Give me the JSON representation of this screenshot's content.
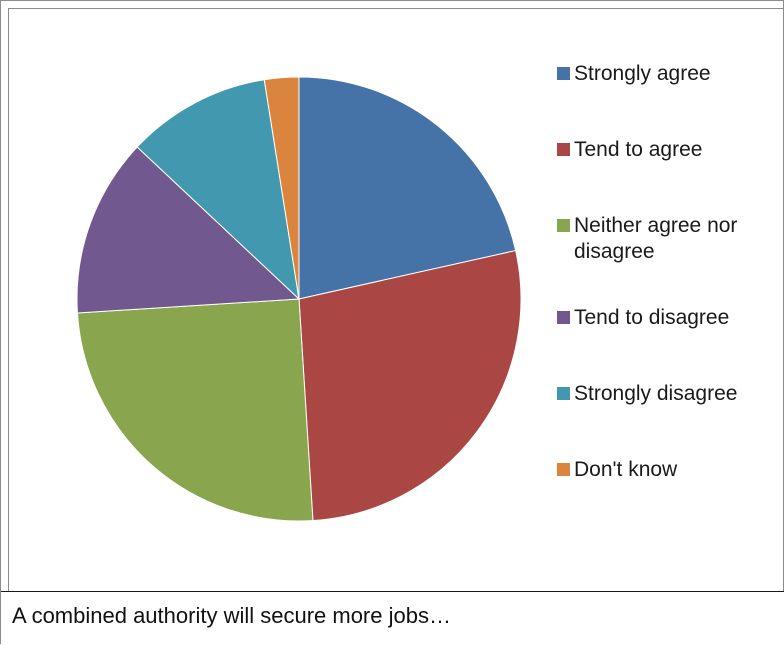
{
  "chart_data": {
    "type": "pie",
    "title": "",
    "categories": [
      "Strongly agree",
      "Tend to agree",
      "Neither agree nor disagree",
      "Tend to disagree",
      "Strongly disagree",
      "Don't know"
    ],
    "values": [
      21.5,
      27.5,
      25.0,
      13.0,
      10.5,
      2.5
    ],
    "colors": [
      "#4572A7",
      "#AA4643",
      "#89A54E",
      "#71588F",
      "#4198AF",
      "#DB843D"
    ],
    "start_angle_deg": 0,
    "direction": "clockwise",
    "legend_position": "right"
  },
  "caption": {
    "text": "A combined authority will secure more jobs…"
  }
}
